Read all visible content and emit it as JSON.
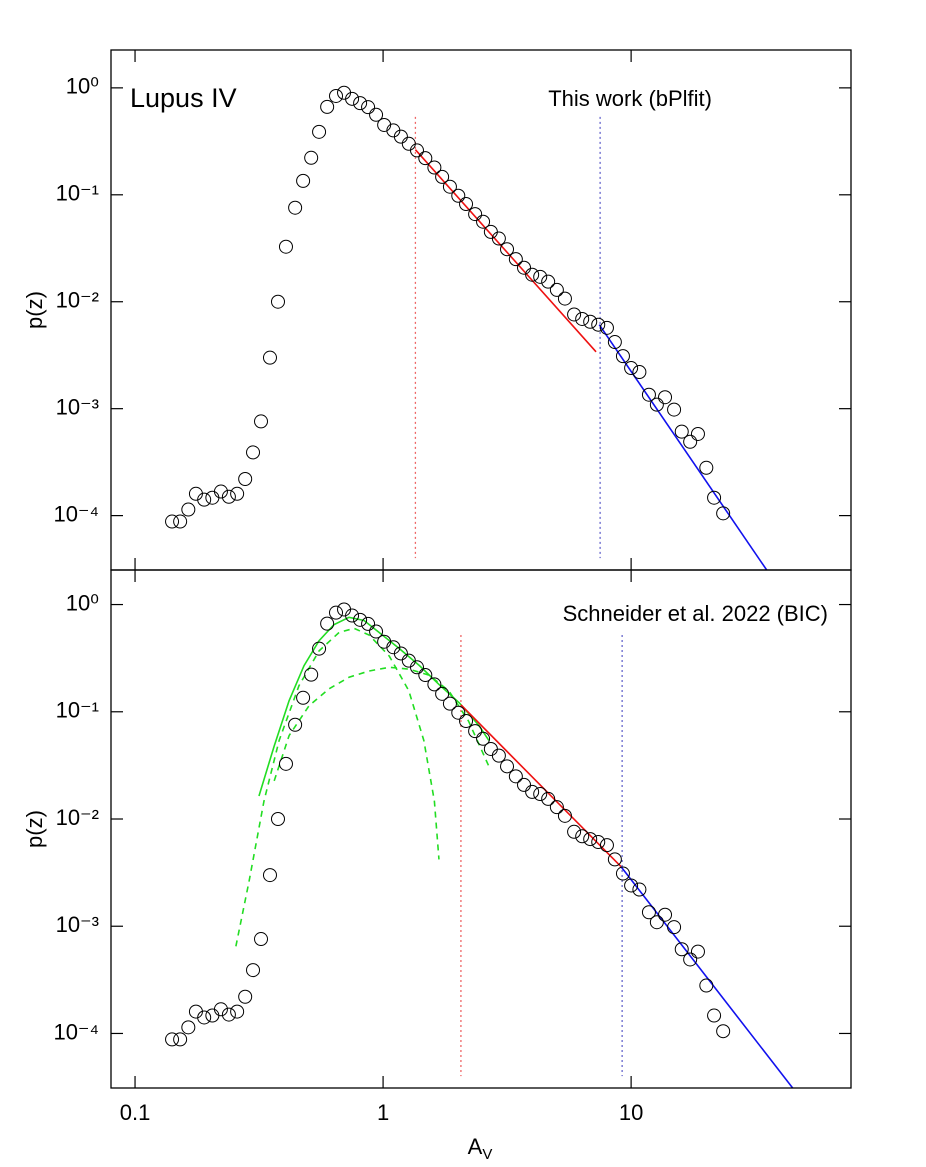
{
  "chart_data": [
    {
      "type": "scatter",
      "log_x": true,
      "log_y": true,
      "ylabel": "p(z)",
      "annotations": [
        "Lupus IV",
        "This work (bPlfit)"
      ],
      "xlim": [
        0.08,
        77
      ],
      "ylim": [
        3.1e-05,
        2.26
      ],
      "xticks": [
        0.1,
        1,
        10
      ],
      "show_xtick_labels": false,
      "yticks": [
        {
          "value": 1,
          "label": "10⁰"
        },
        {
          "value": 0.1,
          "label": "10⁻¹"
        },
        {
          "value": 0.01,
          "label": "10⁻²"
        },
        {
          "value": 0.001,
          "label": "10⁻³"
        },
        {
          "value": 0.0001,
          "label": "10⁻⁴"
        }
      ],
      "points": {
        "color": "#000000",
        "x": [
          0.141,
          0.152,
          0.164,
          0.176,
          0.19,
          0.205,
          0.222,
          0.239,
          0.258,
          0.278,
          0.299,
          0.322,
          0.35,
          0.377,
          0.406,
          0.442,
          0.476,
          0.513,
          0.552,
          0.595,
          0.646,
          0.696,
          0.75,
          0.808,
          0.87,
          0.937,
          1.01,
          1.1,
          1.18,
          1.27,
          1.37,
          1.48,
          1.61,
          1.73,
          1.86,
          2.01,
          2.16,
          2.35,
          2.53,
          2.72,
          2.93,
          3.16,
          3.43,
          3.7,
          3.99,
          4.3,
          4.63,
          5.02,
          5.41,
          5.89,
          6.35,
          6.84,
          7.37,
          7.99,
          8.6,
          9.27,
          10.0,
          10.8,
          11.8,
          12.7,
          13.7,
          14.9,
          16.0,
          17.3,
          18.6,
          20.1,
          21.6,
          23.5
        ],
        "values": [
          8.8e-05,
          8.8e-05,
          0.000114,
          0.00016,
          0.000141,
          0.000147,
          0.000168,
          0.00015,
          0.00016,
          0.00022,
          0.00039,
          0.00076,
          0.003,
          0.01,
          0.0327,
          0.0757,
          0.135,
          0.222,
          0.388,
          0.664,
          0.84,
          0.9,
          0.79,
          0.72,
          0.66,
          0.56,
          0.45,
          0.4,
          0.35,
          0.3,
          0.26,
          0.22,
          0.18,
          0.147,
          0.119,
          0.098,
          0.082,
          0.066,
          0.056,
          0.045,
          0.039,
          0.031,
          0.025,
          0.0208,
          0.0179,
          0.0171,
          0.0154,
          0.0129,
          0.0107,
          0.0076,
          0.0069,
          0.0065,
          0.0061,
          0.0057,
          0.0042,
          0.0031,
          0.0024,
          0.0022,
          0.00135,
          0.00109,
          0.00128,
          0.00098,
          0.00061,
          0.00049,
          0.00058,
          0.00028,
          0.000147,
          0.000105
        ]
      },
      "lines": [
        {
          "color": "#ee1111",
          "style": "solid",
          "x": [
            1.35,
            7.22
          ],
          "values": [
            0.264,
            0.0034
          ]
        },
        {
          "color": "#1111ee",
          "style": "solid",
          "x": [
            7.44,
            35.2
          ],
          "values": [
            0.0061,
            3.1e-05
          ]
        }
      ],
      "vlines": [
        {
          "color": "#ee6666",
          "x": 1.35,
          "y": [
            0.536,
            4e-05
          ]
        },
        {
          "color": "#6666cc",
          "x": 7.5,
          "y": [
            0.536,
            4e-05
          ]
        }
      ]
    },
    {
      "type": "scatter",
      "log_x": true,
      "log_y": true,
      "ylabel": "p(z)",
      "xlabel": "A",
      "xlabel_subscript": "V",
      "annotations": [
        "Schneider et al. 2022 (BIC)"
      ],
      "xlim": [
        0.08,
        77
      ],
      "ylim": [
        3.1e-05,
        2.1
      ],
      "xticks": [
        0.1,
        1,
        10
      ],
      "show_xtick_labels": true,
      "yticks": [
        {
          "value": 1,
          "label": "10⁰"
        },
        {
          "value": 0.1,
          "label": "10⁻¹"
        },
        {
          "value": 0.01,
          "label": "10⁻²"
        },
        {
          "value": 0.001,
          "label": "10⁻³"
        },
        {
          "value": 0.0001,
          "label": "10⁻⁴"
        }
      ],
      "points": {
        "color": "#000000",
        "x": [
          0.141,
          0.152,
          0.164,
          0.176,
          0.19,
          0.205,
          0.222,
          0.239,
          0.258,
          0.278,
          0.299,
          0.322,
          0.35,
          0.377,
          0.406,
          0.442,
          0.476,
          0.513,
          0.552,
          0.595,
          0.646,
          0.696,
          0.75,
          0.808,
          0.87,
          0.937,
          1.01,
          1.1,
          1.18,
          1.27,
          1.37,
          1.48,
          1.61,
          1.73,
          1.86,
          2.01,
          2.16,
          2.35,
          2.53,
          2.72,
          2.93,
          3.16,
          3.43,
          3.7,
          3.99,
          4.3,
          4.63,
          5.02,
          5.41,
          5.89,
          6.35,
          6.84,
          7.37,
          7.99,
          8.6,
          9.27,
          10.0,
          10.8,
          11.8,
          12.7,
          13.7,
          14.9,
          16.0,
          17.3,
          18.6,
          20.1,
          21.6,
          23.5
        ],
        "values": [
          8.8e-05,
          8.8e-05,
          0.000114,
          0.00016,
          0.000141,
          0.000147,
          0.000168,
          0.00015,
          0.00016,
          0.00022,
          0.00039,
          0.00076,
          0.003,
          0.01,
          0.0327,
          0.0757,
          0.135,
          0.222,
          0.388,
          0.664,
          0.84,
          0.9,
          0.79,
          0.72,
          0.66,
          0.56,
          0.45,
          0.4,
          0.35,
          0.3,
          0.26,
          0.22,
          0.18,
          0.147,
          0.119,
          0.098,
          0.082,
          0.066,
          0.056,
          0.045,
          0.039,
          0.031,
          0.025,
          0.0208,
          0.0179,
          0.0171,
          0.0154,
          0.0129,
          0.0107,
          0.0076,
          0.0069,
          0.0065,
          0.0061,
          0.0057,
          0.0042,
          0.0031,
          0.0024,
          0.0022,
          0.00135,
          0.00109,
          0.00128,
          0.00098,
          0.00061,
          0.00049,
          0.00058,
          0.00028,
          0.000147,
          0.000105
        ]
      },
      "lines": [
        {
          "color": "#22dd22",
          "style": "solid",
          "x": [
            0.316,
            0.364,
            0.418,
            0.48,
            0.552,
            0.634,
            0.729,
            0.838,
            0.963,
            1.16,
            1.4,
            1.68,
            2.03,
            2.44,
            2.67
          ],
          "values": [
            0.0164,
            0.048,
            0.127,
            0.269,
            0.46,
            0.65,
            0.76,
            0.71,
            0.55,
            0.39,
            0.27,
            0.18,
            0.121,
            0.074,
            0.054
          ]
        },
        {
          "color": "#22dd22",
          "style": "dashed",
          "x": [
            0.255,
            0.288,
            0.331,
            0.381,
            0.458,
            0.552,
            0.665,
            0.764,
            0.878,
            1.06,
            1.27,
            1.46,
            1.61,
            1.68
          ],
          "values": [
            0.00065,
            0.0026,
            0.0147,
            0.054,
            0.175,
            0.37,
            0.55,
            0.6,
            0.52,
            0.33,
            0.157,
            0.054,
            0.0147,
            0.0042
          ]
        },
        {
          "color": "#22dd22",
          "style": "dashed",
          "x": [
            0.364,
            0.418,
            0.503,
            0.606,
            0.729,
            0.878,
            1.06,
            1.27,
            1.53,
            1.84,
            2.21,
            2.67
          ],
          "values": [
            0.0227,
            0.06,
            0.114,
            0.164,
            0.21,
            0.24,
            0.26,
            0.25,
            0.22,
            0.157,
            0.082,
            0.031
          ]
        },
        {
          "color": "#ee1111",
          "style": "solid",
          "x": [
            2.06,
            9.1
          ],
          "values": [
            0.116,
            0.0036
          ]
        },
        {
          "color": "#1111ee",
          "style": "solid",
          "x": [
            9.1,
            44.8
          ],
          "values": [
            0.0036,
            3.1e-05
          ]
        }
      ],
      "vlines": [
        {
          "color": "#ee6666",
          "x": 2.06,
          "y": [
            0.52,
            4e-05
          ]
        },
        {
          "color": "#6666cc",
          "x": 9.2,
          "y": [
            0.52,
            4e-05
          ]
        }
      ]
    }
  ]
}
